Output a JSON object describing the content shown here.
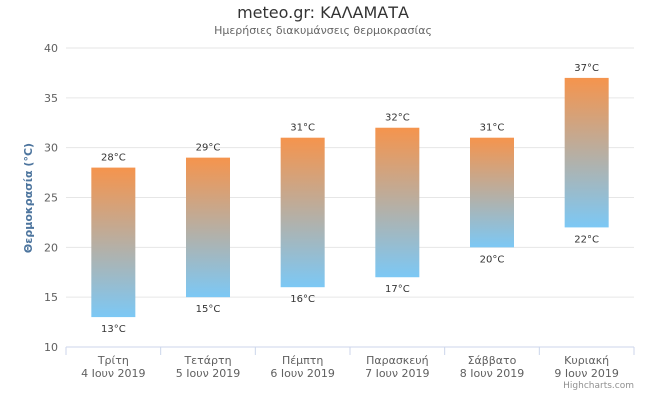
{
  "chart_data": {
    "type": "bar",
    "title": "meteo.gr: ΚΑΛΑΜΑΤΑ",
    "subtitle": "Ημερήσιες διακυμάνσεις θερμοκρασίας",
    "ylabel": "Θερμοκρασία (°C)",
    "ylim": [
      10,
      40
    ],
    "yticks": [
      10,
      15,
      20,
      25,
      30,
      35,
      40
    ],
    "grid": true,
    "categories": [
      [
        "Τρίτη",
        "4 Ιουν 2019"
      ],
      [
        "Τετάρτη",
        "5 Ιουν 2019"
      ],
      [
        "Πέμπτη",
        "6 Ιουν 2019"
      ],
      [
        "Παρασκευή",
        "7 Ιουν 2019"
      ],
      [
        "Σάββατο",
        "8 Ιουν 2019"
      ],
      [
        "Κυριακή",
        "9 Ιουν 2019"
      ]
    ],
    "series": [
      {
        "low": [
          13,
          15,
          16,
          17,
          20,
          22
        ],
        "high": [
          28,
          29,
          31,
          32,
          31,
          37
        ]
      }
    ],
    "unit": "°C",
    "colors": {
      "top": "#f5944d",
      "bottom": "#7cc8f5",
      "grid": "#e6e6e6",
      "axis": "#ccd6eb"
    }
  },
  "credits": "Highcharts.com"
}
